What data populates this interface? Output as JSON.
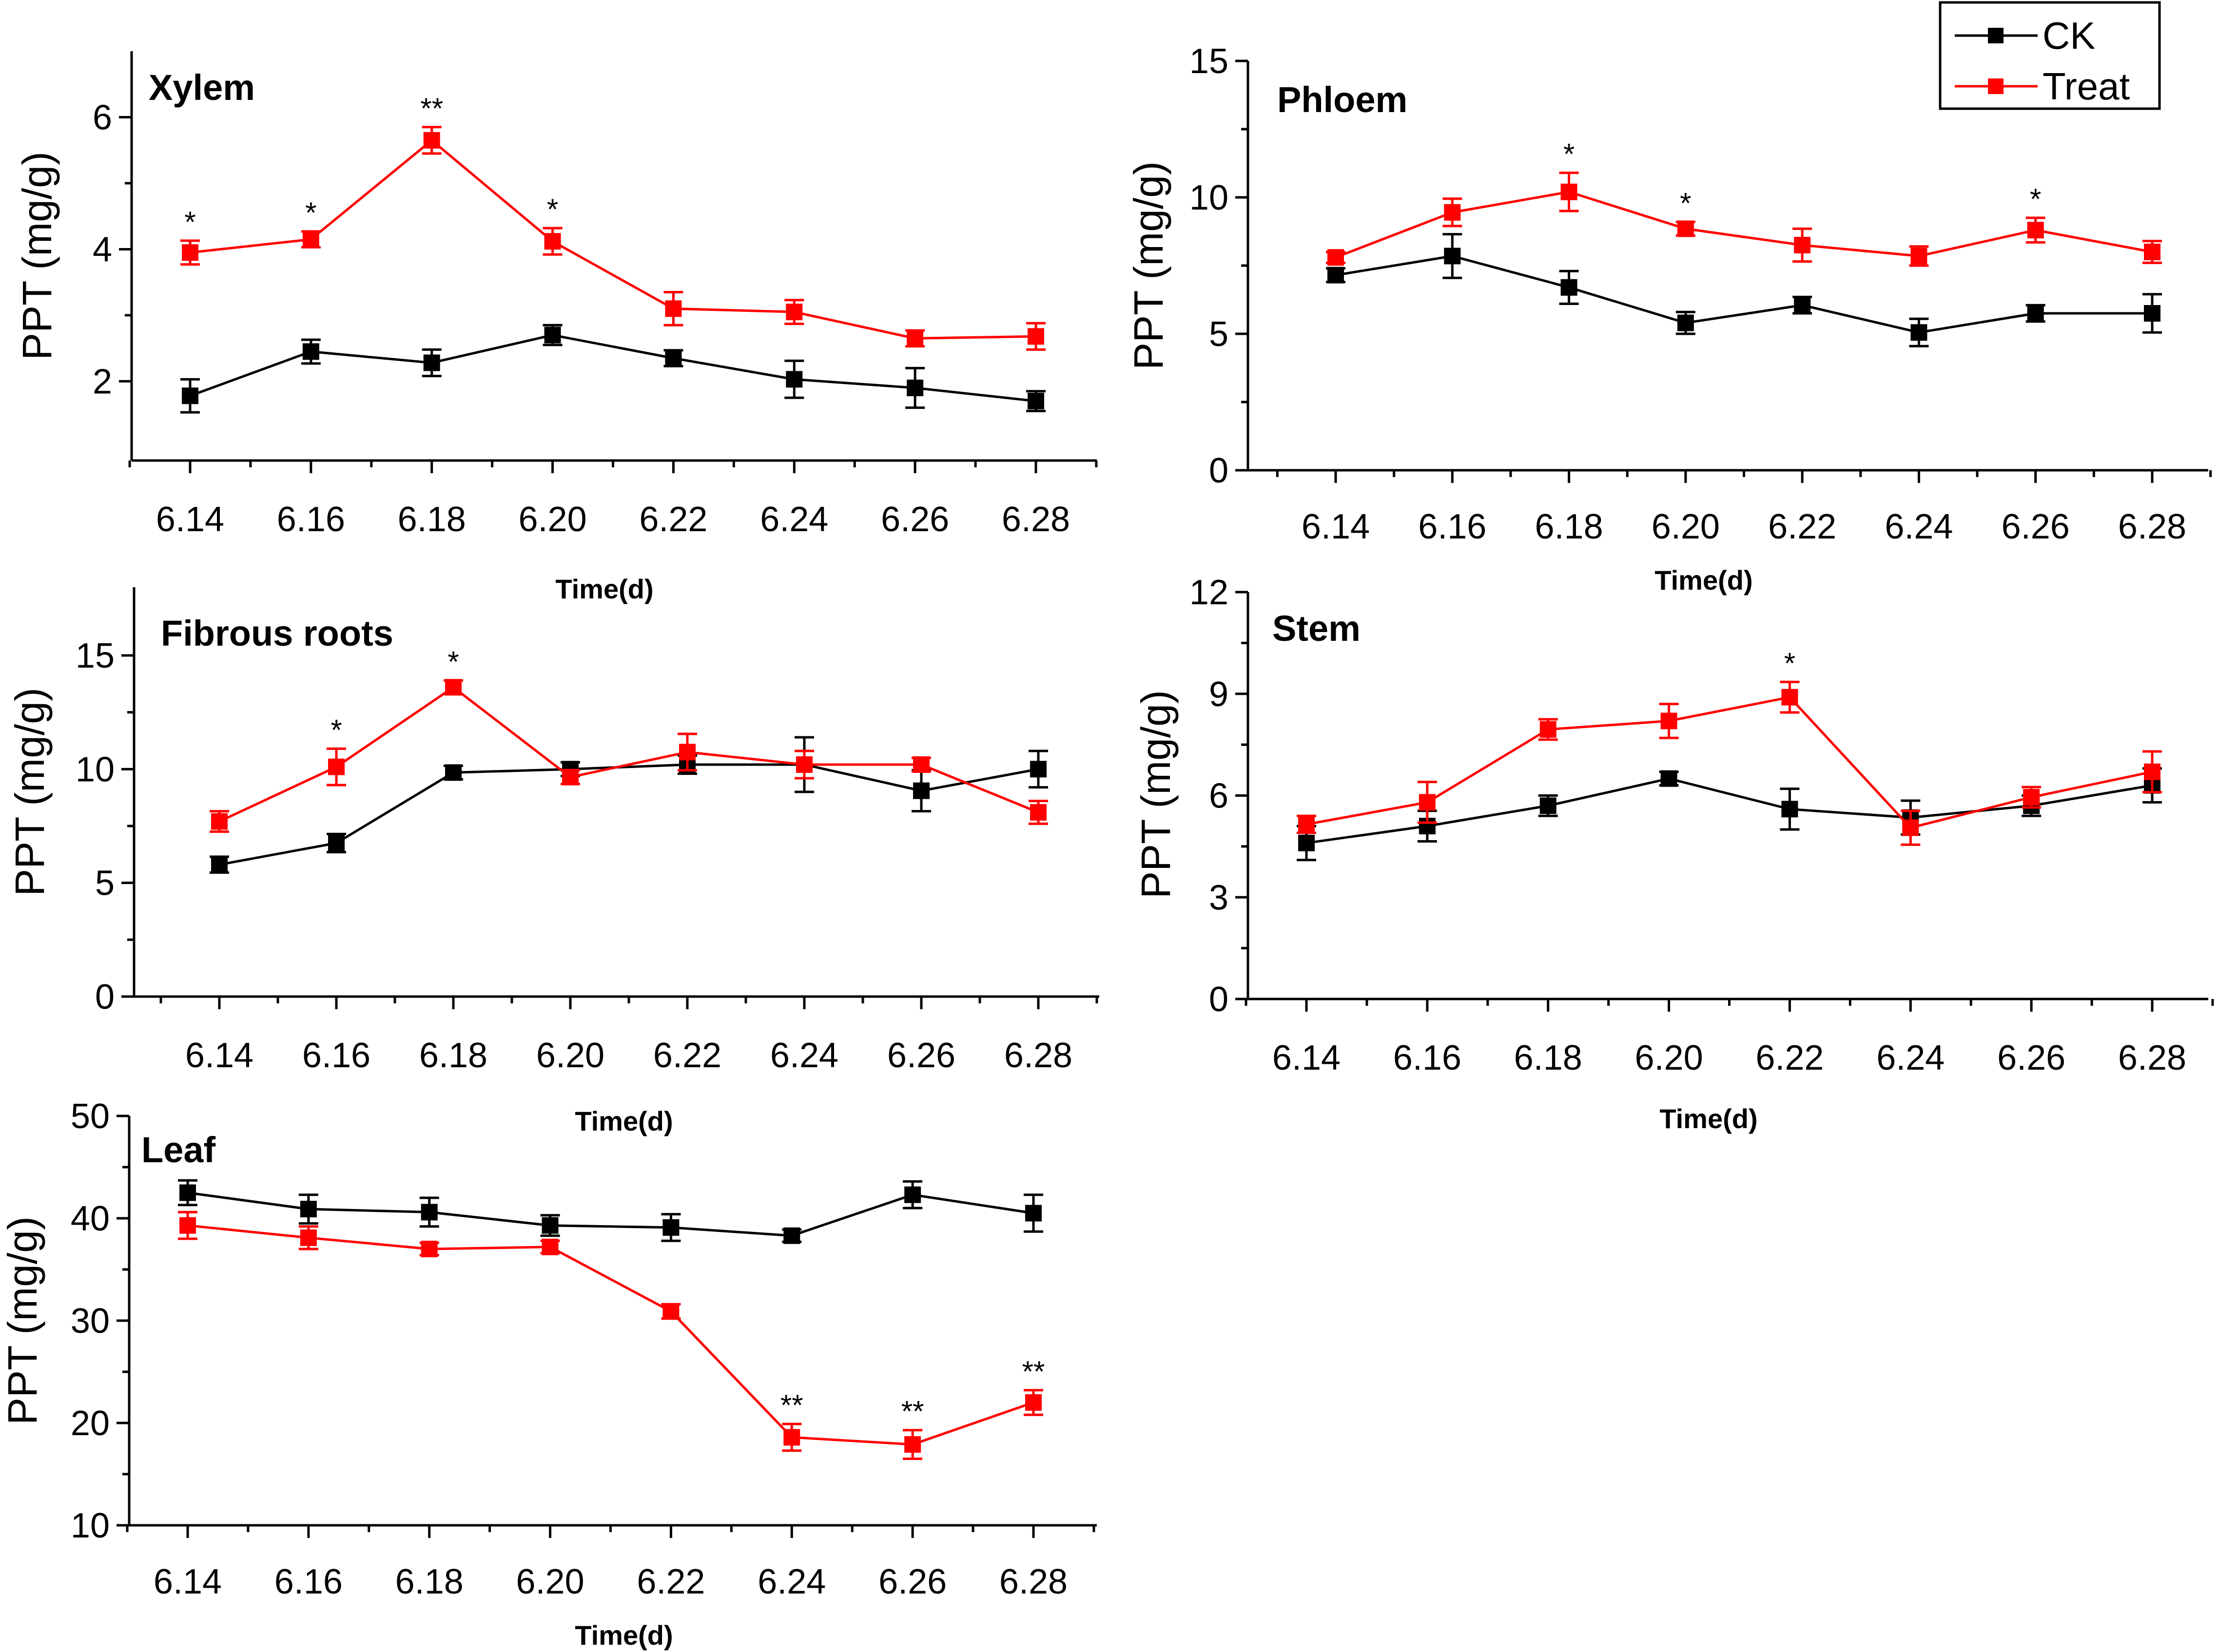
{
  "chart_data": [
    {
      "type": "line",
      "title": "Xylem",
      "xlabel": "Time(d)",
      "ylabel": "PPT (mg/g)",
      "categories": [
        "6.14",
        "6.16",
        "6.18",
        "6.20",
        "6.22",
        "6.24",
        "6.26",
        "6.28"
      ],
      "ylim": [
        0.8,
        7.0
      ],
      "yticks": [
        2,
        4,
        6
      ],
      "series": [
        {
          "name": "CK",
          "color": "#000000",
          "values": [
            1.78,
            2.45,
            2.28,
            2.7,
            2.35,
            2.03,
            1.9,
            1.7
          ],
          "errors": [
            0.25,
            0.18,
            0.2,
            0.15,
            0.12,
            0.28,
            0.3,
            0.15
          ]
        },
        {
          "name": "Treat",
          "color": "#ff0000",
          "values": [
            3.95,
            4.15,
            5.65,
            4.12,
            3.1,
            3.05,
            2.65,
            2.68
          ],
          "errors": [
            0.18,
            0.12,
            0.2,
            0.2,
            0.25,
            0.18,
            0.12,
            0.2
          ]
        }
      ],
      "significance": [
        {
          "index": 0,
          "label": "*"
        },
        {
          "index": 1,
          "label": "*"
        },
        {
          "index": 2,
          "label": "**"
        },
        {
          "index": 3,
          "label": "*"
        }
      ]
    },
    {
      "type": "line",
      "title": "Phloem",
      "xlabel": "Time(d)",
      "ylabel": "PPT (mg/g)",
      "categories": [
        "6.14",
        "6.16",
        "6.18",
        "6.20",
        "6.22",
        "6.24",
        "6.26",
        "6.28"
      ],
      "ylim": [
        0,
        15
      ],
      "yticks": [
        0,
        5,
        10,
        15
      ],
      "series": [
        {
          "name": "CK",
          "color": "#000000",
          "values": [
            7.15,
            7.85,
            6.7,
            5.4,
            6.05,
            5.05,
            5.75,
            5.75
          ],
          "errors": [
            0.25,
            0.8,
            0.6,
            0.4,
            0.3,
            0.5,
            0.3,
            0.7
          ]
        },
        {
          "name": "Treat",
          "color": "#ff0000",
          "values": [
            7.8,
            9.45,
            10.2,
            8.85,
            8.25,
            7.85,
            8.8,
            8.0
          ],
          "errors": [
            0.2,
            0.5,
            0.7,
            0.25,
            0.6,
            0.35,
            0.45,
            0.4
          ]
        }
      ],
      "significance": [
        {
          "index": 2,
          "label": "*"
        },
        {
          "index": 3,
          "label": "*"
        },
        {
          "index": 6,
          "label": "*"
        }
      ]
    },
    {
      "type": "line",
      "title": "Fibrous roots",
      "xlabel": "Time(d)",
      "ylabel": "PPT (mg/g)",
      "categories": [
        "6.14",
        "6.16",
        "6.18",
        "6.20",
        "6.22",
        "6.24",
        "6.26",
        "6.28"
      ],
      "ylim": [
        0,
        18
      ],
      "yticks": [
        0,
        5,
        10,
        15
      ],
      "series": [
        {
          "name": "CK",
          "color": "#000000",
          "values": [
            5.8,
            6.75,
            9.85,
            10.0,
            10.2,
            10.2,
            9.05,
            10.0
          ],
          "errors": [
            0.35,
            0.4,
            0.3,
            0.3,
            0.4,
            1.2,
            0.9,
            0.8
          ]
        },
        {
          "name": "Treat",
          "color": "#ff0000",
          "values": [
            7.7,
            10.1,
            13.6,
            9.65,
            10.75,
            10.2,
            10.2,
            8.1
          ],
          "errors": [
            0.45,
            0.8,
            0.3,
            0.3,
            0.8,
            0.6,
            0.3,
            0.5
          ]
        }
      ],
      "significance": [
        {
          "index": 1,
          "label": "*"
        },
        {
          "index": 2,
          "label": "*"
        }
      ]
    },
    {
      "type": "line",
      "title": "Stem",
      "xlabel": "Time(d)",
      "ylabel": "PPT (mg/g)",
      "categories": [
        "6.14",
        "6.16",
        "6.18",
        "6.20",
        "6.22",
        "6.24",
        "6.26",
        "6.28"
      ],
      "ylim": [
        0,
        12
      ],
      "yticks": [
        0,
        3,
        6,
        9,
        12
      ],
      "series": [
        {
          "name": "CK",
          "color": "#000000",
          "values": [
            4.6,
            5.1,
            5.7,
            6.5,
            5.6,
            5.35,
            5.7,
            6.3
          ],
          "errors": [
            0.5,
            0.45,
            0.3,
            0.2,
            0.6,
            0.5,
            0.3,
            0.5
          ]
        },
        {
          "name": "Treat",
          "color": "#ff0000",
          "values": [
            5.15,
            5.8,
            7.95,
            8.2,
            8.9,
            5.05,
            5.95,
            6.7
          ],
          "errors": [
            0.25,
            0.6,
            0.3,
            0.5,
            0.45,
            0.5,
            0.3,
            0.6
          ]
        }
      ],
      "significance": [
        {
          "index": 4,
          "label": "*"
        }
      ]
    },
    {
      "type": "line",
      "title": "Leaf",
      "xlabel": "Time(d)",
      "ylabel": "PPT (mg/g)",
      "categories": [
        "6.14",
        "6.16",
        "6.18",
        "6.20",
        "6.22",
        "6.24",
        "6.26",
        "6.28"
      ],
      "ylim": [
        10,
        50
      ],
      "yticks": [
        10,
        20,
        30,
        40,
        50
      ],
      "series": [
        {
          "name": "CK",
          "color": "#000000",
          "values": [
            42.5,
            40.9,
            40.6,
            39.3,
            39.1,
            38.3,
            42.3,
            40.5
          ],
          "errors": [
            1.2,
            1.4,
            1.4,
            1.0,
            1.3,
            0.6,
            1.3,
            1.8
          ]
        },
        {
          "name": "Treat",
          "color": "#ff0000",
          "values": [
            39.3,
            38.1,
            37.0,
            37.2,
            30.9,
            18.6,
            17.9,
            22.0
          ],
          "errors": [
            1.3,
            1.1,
            0.6,
            0.6,
            0.7,
            1.3,
            1.4,
            1.2
          ]
        }
      ],
      "significance": [
        {
          "index": 5,
          "label": "**"
        },
        {
          "index": 6,
          "label": "**"
        },
        {
          "index": 7,
          "label": "**"
        }
      ]
    }
  ],
  "legend": {
    "items": [
      {
        "label": "CK",
        "color": "#000000"
      },
      {
        "label": "Treat",
        "color": "#ff0000"
      }
    ]
  }
}
